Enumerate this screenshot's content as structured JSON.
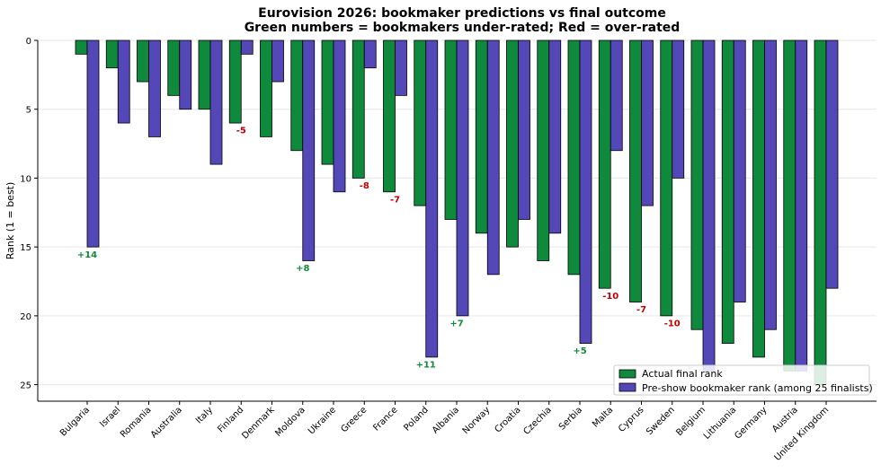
{
  "chart_data": {
    "type": "bar",
    "title": "Eurovision 2026: bookmaker predictions vs final outcome",
    "subtitle": "Green numbers = bookmakers under-rated; Red = over-rated",
    "xlabel": "",
    "ylabel": "Rank (1 = best)",
    "y_inverted": true,
    "ylim": [
      0,
      26.2
    ],
    "yticks": [
      0,
      5,
      10,
      15,
      20,
      25
    ],
    "grid": "y",
    "legend_position": "bottom-right",
    "categories": [
      "Bulgaria",
      "Israel",
      "Romania",
      "Australia",
      "Italy",
      "Finland",
      "Denmark",
      "Moldova",
      "Ukraine",
      "Greece",
      "France",
      "Poland",
      "Albania",
      "Norway",
      "Croatia",
      "Czechia",
      "Serbia",
      "Malta",
      "Cyprus",
      "Sweden",
      "Belgium",
      "Lithuania",
      "Germany",
      "Austria",
      "United Kingdom"
    ],
    "series": [
      {
        "name": "Actual final rank",
        "color": "#0f8a3c",
        "values": [
          1,
          2,
          3,
          4,
          5,
          6,
          7,
          8,
          9,
          10,
          11,
          12,
          13,
          14,
          15,
          16,
          17,
          18,
          19,
          20,
          21,
          22,
          23,
          24,
          25
        ]
      },
      {
        "name": "Pre-show bookmaker rank (among 25 finalists)",
        "color": "#5448b8",
        "values": [
          15,
          6,
          7,
          5,
          9,
          1,
          3,
          16,
          11,
          2,
          4,
          23,
          20,
          17,
          13,
          14,
          22,
          8,
          12,
          10,
          24,
          19,
          21,
          24,
          18
        ]
      }
    ],
    "annotations": [
      {
        "category": "Bulgaria",
        "text": "+14",
        "y": 15.5,
        "color": "#0f8a3c"
      },
      {
        "category": "Finland",
        "text": "-5",
        "y": 6.5,
        "color": "#c00000"
      },
      {
        "category": "Moldova",
        "text": "+8",
        "y": 16.5,
        "color": "#0f8a3c"
      },
      {
        "category": "Greece",
        "text": "-8",
        "y": 10.5,
        "color": "#c00000"
      },
      {
        "category": "France",
        "text": "-7",
        "y": 11.5,
        "color": "#c00000"
      },
      {
        "category": "Poland",
        "text": "+11",
        "y": 23.5,
        "color": "#0f8a3c"
      },
      {
        "category": "Albania",
        "text": "+7",
        "y": 20.5,
        "color": "#0f8a3c"
      },
      {
        "category": "Serbia",
        "text": "+5",
        "y": 22.5,
        "color": "#0f8a3c"
      },
      {
        "category": "Malta",
        "text": "-10",
        "y": 18.5,
        "color": "#c00000"
      },
      {
        "category": "Cyprus",
        "text": "-7",
        "y": 19.5,
        "color": "#c00000"
      },
      {
        "category": "Sweden",
        "text": "-10",
        "y": 20.5,
        "color": "#c00000"
      }
    ]
  }
}
